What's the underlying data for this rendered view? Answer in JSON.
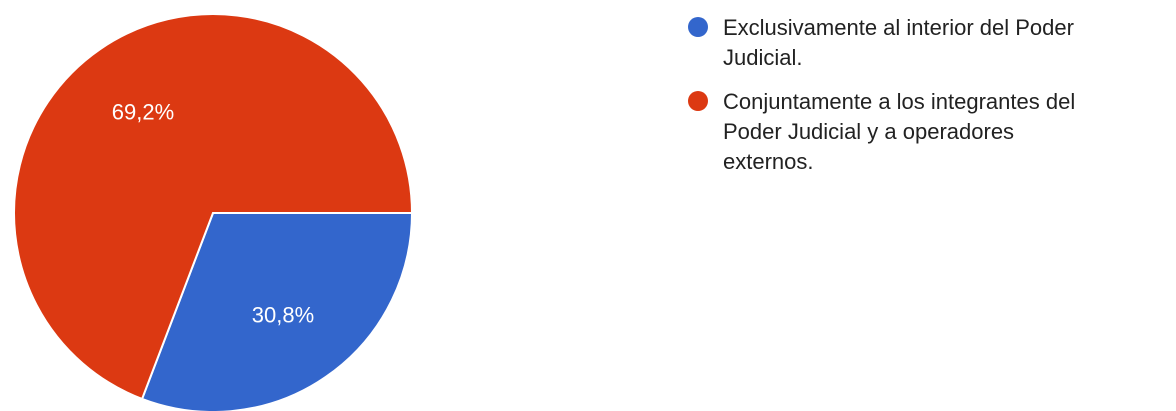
{
  "chart_data": {
    "type": "pie",
    "slices": [
      {
        "label_lines": [
          "Exclusivamente al interior del Poder",
          "Judicial."
        ],
        "value": 30.8,
        "value_label": "30,8%",
        "color": "#3366cc"
      },
      {
        "label_lines": [
          "Conjuntamente a los integrantes del",
          "Poder Judicial y a operadores",
          "externos."
        ],
        "value": 69.2,
        "value_label": "69,2%",
        "color": "#dc3912"
      }
    ],
    "legend_position": "right",
    "start_angle": "3 o'clock",
    "direction": "clockwise"
  }
}
